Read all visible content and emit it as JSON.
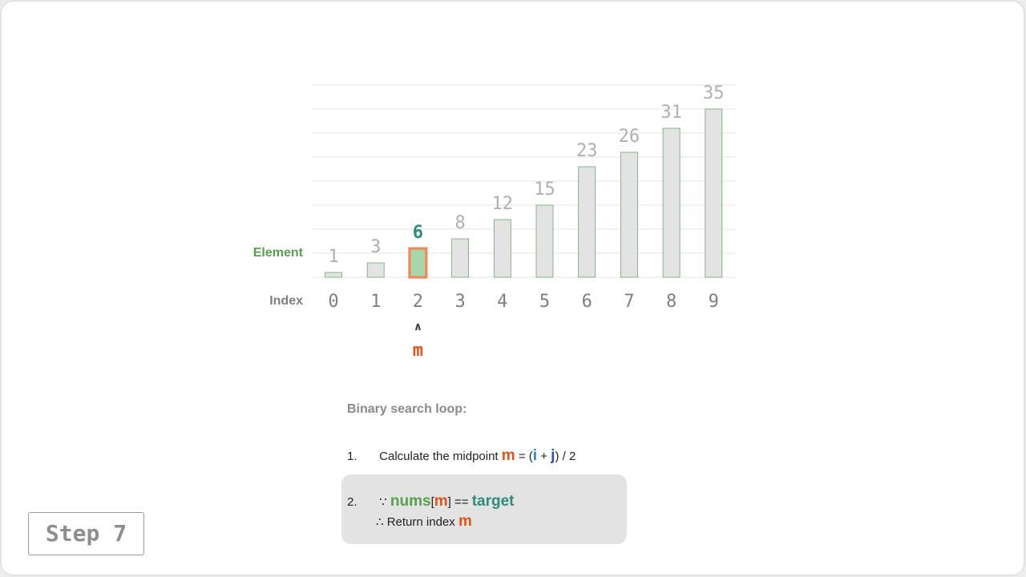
{
  "chart_data": {
    "type": "bar",
    "categories": [
      "0",
      "1",
      "2",
      "3",
      "4",
      "5",
      "6",
      "7",
      "8",
      "9"
    ],
    "values": [
      1,
      3,
      6,
      8,
      12,
      15,
      23,
      26,
      31,
      35
    ],
    "row_labels": {
      "element": "Element",
      "index": "Index"
    },
    "highlight_index": 2,
    "pointer": {
      "arrow": "∧",
      "label": "m",
      "index": 2
    },
    "grid": true,
    "colors": {
      "bar_fill": "#e3e3e3",
      "bar_stroke": "#6aa86a",
      "highlight_fill": "#a9d5a9",
      "highlight_stroke": "#ee8755",
      "value_label": "#b0b0b0",
      "highlight_value_label": "#2e8b7e",
      "index_label": "#7f7f7f",
      "element_label": "#5a9e4f",
      "grid": "#e4e4e4",
      "pointer": "#e2531c"
    }
  },
  "explanation": {
    "title": "Binary search loop:",
    "step1": {
      "num": "1.",
      "text": "Calculate the midpoint",
      "m": "m",
      "eq": "= (",
      "i": "i",
      "plus": "+",
      "j": "j",
      "tail": ") / 2"
    },
    "step2": {
      "num": "2.",
      "because": "∵",
      "nums": "nums",
      "lbr": "[",
      "m": "m",
      "rbr": "]",
      "eqeq": "==",
      "target": "target",
      "therefore": "∴",
      "return_text": "Return index",
      "m2": "m"
    }
  },
  "step_badge": "Step 7",
  "colors": {
    "m": "#e2531c",
    "i": "#2b82c9",
    "j": "#2b4fbf",
    "nums": "#5a9e4f",
    "target": "#2e8b7e"
  }
}
